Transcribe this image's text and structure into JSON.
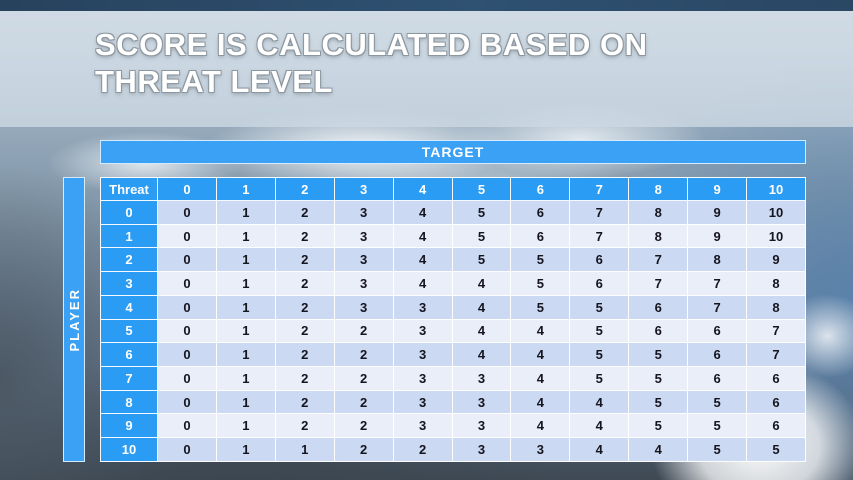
{
  "slide": {
    "title_line1": "SCORE IS CALCULATED BASED ON",
    "title_line2": "THREAT LEVEL"
  },
  "matrix": {
    "target_axis_label": "TARGET",
    "player_axis_label": "PLAYER",
    "corner_label": "Threat"
  },
  "chart_data": {
    "type": "table",
    "title": "SCORE IS CALCULATED BASED ON THREAT LEVEL",
    "corner_label": "Threat",
    "row_axis": "PLAYER",
    "column_axis": "TARGET",
    "columns": [
      "0",
      "1",
      "2",
      "3",
      "4",
      "5",
      "6",
      "7",
      "8",
      "9",
      "10"
    ],
    "rows": [
      {
        "label": "0",
        "values": [
          0,
          1,
          2,
          3,
          4,
          5,
          6,
          7,
          8,
          9,
          10
        ]
      },
      {
        "label": "1",
        "values": [
          0,
          1,
          2,
          3,
          4,
          5,
          6,
          7,
          8,
          9,
          10
        ]
      },
      {
        "label": "2",
        "values": [
          0,
          1,
          2,
          3,
          4,
          5,
          5,
          6,
          7,
          8,
          9
        ]
      },
      {
        "label": "3",
        "values": [
          0,
          1,
          2,
          3,
          4,
          4,
          5,
          6,
          7,
          7,
          8
        ]
      },
      {
        "label": "4",
        "values": [
          0,
          1,
          2,
          3,
          3,
          4,
          5,
          5,
          6,
          7,
          8
        ]
      },
      {
        "label": "5",
        "values": [
          0,
          1,
          2,
          2,
          3,
          4,
          4,
          5,
          6,
          6,
          7
        ]
      },
      {
        "label": "6",
        "values": [
          0,
          1,
          2,
          2,
          3,
          4,
          4,
          5,
          5,
          6,
          7
        ]
      },
      {
        "label": "7",
        "values": [
          0,
          1,
          2,
          2,
          3,
          3,
          4,
          5,
          5,
          6,
          6
        ]
      },
      {
        "label": "8",
        "values": [
          0,
          1,
          2,
          2,
          3,
          3,
          4,
          4,
          5,
          5,
          6
        ]
      },
      {
        "label": "9",
        "values": [
          0,
          1,
          2,
          2,
          3,
          3,
          4,
          4,
          5,
          5,
          6
        ]
      },
      {
        "label": "10",
        "values": [
          0,
          1,
          1,
          2,
          2,
          3,
          3,
          4,
          4,
          5,
          5
        ]
      }
    ]
  },
  "colors": {
    "accent_blue": "#3ba1f4",
    "header_blue": "#2b9cf4",
    "row_band_dark": "#cbd9f2",
    "row_band_light": "#e9eef9",
    "cell_text": "#15151f",
    "top_bar": "#2c4965"
  }
}
